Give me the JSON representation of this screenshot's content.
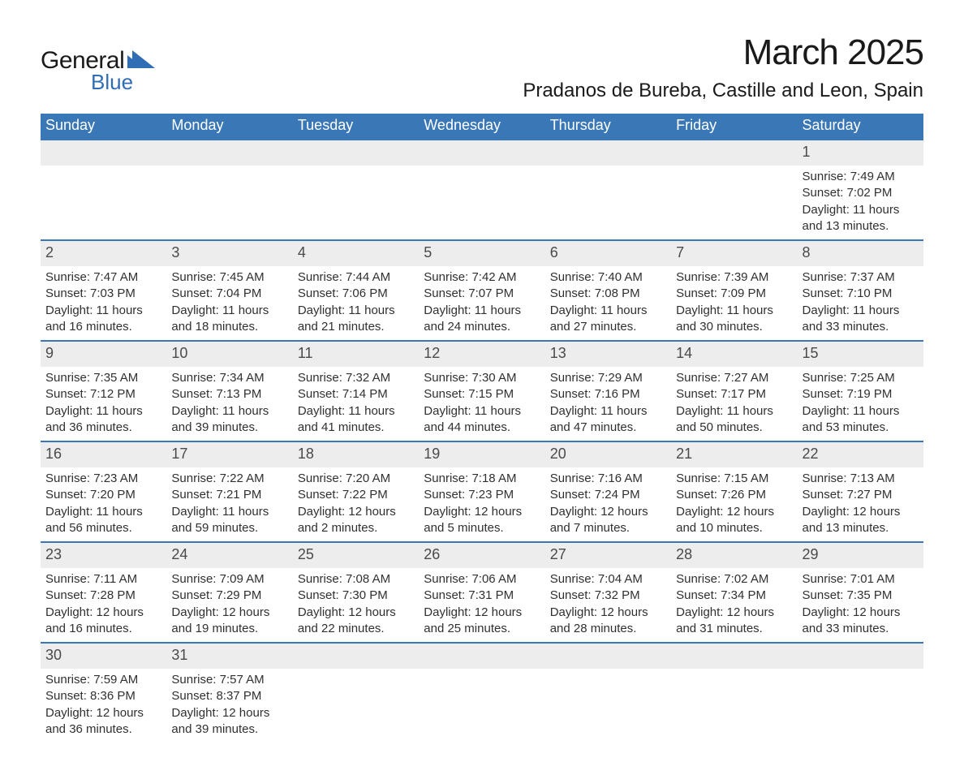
{
  "brand": {
    "word1": "General",
    "word2": "Blue",
    "accent_color": "#2f6eb5"
  },
  "title": "March 2025",
  "location": "Pradanos de Bureba, Castille and Leon, Spain",
  "theme": {
    "header_bg": "#3a77b7",
    "header_fg": "#ffffff",
    "daynum_bg": "#ededed",
    "border_color": "#3a77b7",
    "body_bg": "#ffffff",
    "text_color": "#303030",
    "title_fontsize": 44,
    "location_fontsize": 24,
    "header_fontsize": 18,
    "body_fontsize": 15
  },
  "day_headers": [
    "Sunday",
    "Monday",
    "Tuesday",
    "Wednesday",
    "Thursday",
    "Friday",
    "Saturday"
  ],
  "weeks": [
    [
      null,
      null,
      null,
      null,
      null,
      null,
      {
        "n": "1",
        "sunrise": "Sunrise: 7:49 AM",
        "sunset": "Sunset: 7:02 PM",
        "dl1": "Daylight: 11 hours",
        "dl2": "and 13 minutes."
      }
    ],
    [
      {
        "n": "2",
        "sunrise": "Sunrise: 7:47 AM",
        "sunset": "Sunset: 7:03 PM",
        "dl1": "Daylight: 11 hours",
        "dl2": "and 16 minutes."
      },
      {
        "n": "3",
        "sunrise": "Sunrise: 7:45 AM",
        "sunset": "Sunset: 7:04 PM",
        "dl1": "Daylight: 11 hours",
        "dl2": "and 18 minutes."
      },
      {
        "n": "4",
        "sunrise": "Sunrise: 7:44 AM",
        "sunset": "Sunset: 7:06 PM",
        "dl1": "Daylight: 11 hours",
        "dl2": "and 21 minutes."
      },
      {
        "n": "5",
        "sunrise": "Sunrise: 7:42 AM",
        "sunset": "Sunset: 7:07 PM",
        "dl1": "Daylight: 11 hours",
        "dl2": "and 24 minutes."
      },
      {
        "n": "6",
        "sunrise": "Sunrise: 7:40 AM",
        "sunset": "Sunset: 7:08 PM",
        "dl1": "Daylight: 11 hours",
        "dl2": "and 27 minutes."
      },
      {
        "n": "7",
        "sunrise": "Sunrise: 7:39 AM",
        "sunset": "Sunset: 7:09 PM",
        "dl1": "Daylight: 11 hours",
        "dl2": "and 30 minutes."
      },
      {
        "n": "8",
        "sunrise": "Sunrise: 7:37 AM",
        "sunset": "Sunset: 7:10 PM",
        "dl1": "Daylight: 11 hours",
        "dl2": "and 33 minutes."
      }
    ],
    [
      {
        "n": "9",
        "sunrise": "Sunrise: 7:35 AM",
        "sunset": "Sunset: 7:12 PM",
        "dl1": "Daylight: 11 hours",
        "dl2": "and 36 minutes."
      },
      {
        "n": "10",
        "sunrise": "Sunrise: 7:34 AM",
        "sunset": "Sunset: 7:13 PM",
        "dl1": "Daylight: 11 hours",
        "dl2": "and 39 minutes."
      },
      {
        "n": "11",
        "sunrise": "Sunrise: 7:32 AM",
        "sunset": "Sunset: 7:14 PM",
        "dl1": "Daylight: 11 hours",
        "dl2": "and 41 minutes."
      },
      {
        "n": "12",
        "sunrise": "Sunrise: 7:30 AM",
        "sunset": "Sunset: 7:15 PM",
        "dl1": "Daylight: 11 hours",
        "dl2": "and 44 minutes."
      },
      {
        "n": "13",
        "sunrise": "Sunrise: 7:29 AM",
        "sunset": "Sunset: 7:16 PM",
        "dl1": "Daylight: 11 hours",
        "dl2": "and 47 minutes."
      },
      {
        "n": "14",
        "sunrise": "Sunrise: 7:27 AM",
        "sunset": "Sunset: 7:17 PM",
        "dl1": "Daylight: 11 hours",
        "dl2": "and 50 minutes."
      },
      {
        "n": "15",
        "sunrise": "Sunrise: 7:25 AM",
        "sunset": "Sunset: 7:19 PM",
        "dl1": "Daylight: 11 hours",
        "dl2": "and 53 minutes."
      }
    ],
    [
      {
        "n": "16",
        "sunrise": "Sunrise: 7:23 AM",
        "sunset": "Sunset: 7:20 PM",
        "dl1": "Daylight: 11 hours",
        "dl2": "and 56 minutes."
      },
      {
        "n": "17",
        "sunrise": "Sunrise: 7:22 AM",
        "sunset": "Sunset: 7:21 PM",
        "dl1": "Daylight: 11 hours",
        "dl2": "and 59 minutes."
      },
      {
        "n": "18",
        "sunrise": "Sunrise: 7:20 AM",
        "sunset": "Sunset: 7:22 PM",
        "dl1": "Daylight: 12 hours",
        "dl2": "and 2 minutes."
      },
      {
        "n": "19",
        "sunrise": "Sunrise: 7:18 AM",
        "sunset": "Sunset: 7:23 PM",
        "dl1": "Daylight: 12 hours",
        "dl2": "and 5 minutes."
      },
      {
        "n": "20",
        "sunrise": "Sunrise: 7:16 AM",
        "sunset": "Sunset: 7:24 PM",
        "dl1": "Daylight: 12 hours",
        "dl2": "and 7 minutes."
      },
      {
        "n": "21",
        "sunrise": "Sunrise: 7:15 AM",
        "sunset": "Sunset: 7:26 PM",
        "dl1": "Daylight: 12 hours",
        "dl2": "and 10 minutes."
      },
      {
        "n": "22",
        "sunrise": "Sunrise: 7:13 AM",
        "sunset": "Sunset: 7:27 PM",
        "dl1": "Daylight: 12 hours",
        "dl2": "and 13 minutes."
      }
    ],
    [
      {
        "n": "23",
        "sunrise": "Sunrise: 7:11 AM",
        "sunset": "Sunset: 7:28 PM",
        "dl1": "Daylight: 12 hours",
        "dl2": "and 16 minutes."
      },
      {
        "n": "24",
        "sunrise": "Sunrise: 7:09 AM",
        "sunset": "Sunset: 7:29 PM",
        "dl1": "Daylight: 12 hours",
        "dl2": "and 19 minutes."
      },
      {
        "n": "25",
        "sunrise": "Sunrise: 7:08 AM",
        "sunset": "Sunset: 7:30 PM",
        "dl1": "Daylight: 12 hours",
        "dl2": "and 22 minutes."
      },
      {
        "n": "26",
        "sunrise": "Sunrise: 7:06 AM",
        "sunset": "Sunset: 7:31 PM",
        "dl1": "Daylight: 12 hours",
        "dl2": "and 25 minutes."
      },
      {
        "n": "27",
        "sunrise": "Sunrise: 7:04 AM",
        "sunset": "Sunset: 7:32 PM",
        "dl1": "Daylight: 12 hours",
        "dl2": "and 28 minutes."
      },
      {
        "n": "28",
        "sunrise": "Sunrise: 7:02 AM",
        "sunset": "Sunset: 7:34 PM",
        "dl1": "Daylight: 12 hours",
        "dl2": "and 31 minutes."
      },
      {
        "n": "29",
        "sunrise": "Sunrise: 7:01 AM",
        "sunset": "Sunset: 7:35 PM",
        "dl1": "Daylight: 12 hours",
        "dl2": "and 33 minutes."
      }
    ],
    [
      {
        "n": "30",
        "sunrise": "Sunrise: 7:59 AM",
        "sunset": "Sunset: 8:36 PM",
        "dl1": "Daylight: 12 hours",
        "dl2": "and 36 minutes."
      },
      {
        "n": "31",
        "sunrise": "Sunrise: 7:57 AM",
        "sunset": "Sunset: 8:37 PM",
        "dl1": "Daylight: 12 hours",
        "dl2": "and 39 minutes."
      },
      null,
      null,
      null,
      null,
      null
    ]
  ]
}
